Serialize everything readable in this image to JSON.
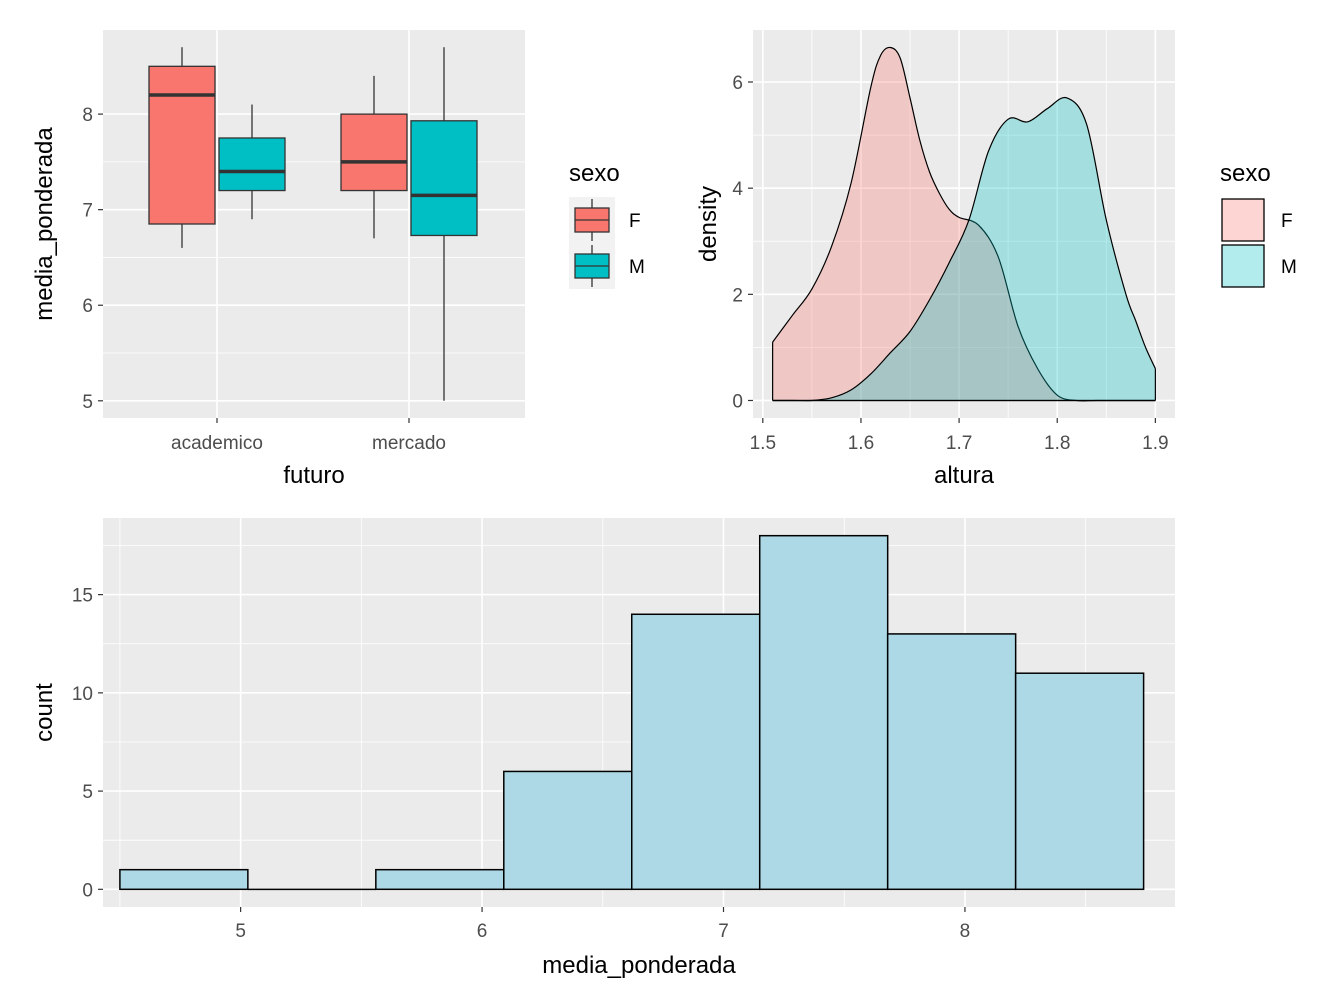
{
  "chart_data": [
    {
      "type": "box",
      "xlabel": "futuro",
      "ylabel": "media_ponderada",
      "categories": [
        "academico",
        "mercado"
      ],
      "ylim": [
        4.82,
        8.88
      ],
      "yticks": [
        5,
        6,
        7,
        8
      ],
      "legend": {
        "title": "sexo",
        "position": "right"
      },
      "series": [
        {
          "name": "F",
          "color": "#F8766D",
          "boxes": [
            {
              "category": "academico",
              "min": 6.6,
              "q1": 6.85,
              "median": 8.2,
              "q3": 8.5,
              "max": 8.7
            },
            {
              "category": "mercado",
              "min": 6.7,
              "q1": 7.2,
              "median": 7.5,
              "q3": 8.0,
              "max": 8.4
            }
          ]
        },
        {
          "name": "M",
          "color": "#00BFC4",
          "boxes": [
            {
              "category": "academico",
              "min": 6.9,
              "q1": 7.2,
              "median": 7.4,
              "q3": 7.75,
              "max": 8.1
            },
            {
              "category": "mercado",
              "min": 5.0,
              "q1": 6.73,
              "median": 7.15,
              "q3": 7.93,
              "max": 8.7
            }
          ]
        }
      ]
    },
    {
      "type": "area",
      "xlabel": "altura",
      "ylabel": "density",
      "xlim": [
        1.49,
        1.92
      ],
      "ylim": [
        -0.33,
        6.98
      ],
      "xticks": [
        1.5,
        1.6,
        1.7,
        1.8,
        1.9
      ],
      "yticks": [
        0,
        2,
        4,
        6
      ],
      "legend": {
        "title": "sexo",
        "position": "right"
      },
      "series": [
        {
          "name": "F",
          "color": "#F8766D",
          "x": [
            1.51,
            1.53,
            1.55,
            1.57,
            1.59,
            1.61,
            1.62,
            1.63,
            1.64,
            1.65,
            1.66,
            1.67,
            1.68,
            1.69,
            1.7,
            1.72,
            1.74,
            1.76,
            1.78,
            1.8,
            1.82,
            1.84,
            1.86,
            1.88,
            1.9
          ],
          "y": [
            1.1,
            1.6,
            2.1,
            2.9,
            4.1,
            5.9,
            6.5,
            6.65,
            6.45,
            5.7,
            4.9,
            4.3,
            3.9,
            3.6,
            3.45,
            3.3,
            2.7,
            1.4,
            0.6,
            0.1,
            0.0,
            0.0,
            0.0,
            0.0,
            0.0
          ]
        },
        {
          "name": "M",
          "color": "#00BFC4",
          "x": [
            1.51,
            1.53,
            1.55,
            1.57,
            1.59,
            1.61,
            1.63,
            1.65,
            1.67,
            1.69,
            1.71,
            1.73,
            1.75,
            1.77,
            1.79,
            1.81,
            1.83,
            1.85,
            1.87,
            1.88,
            1.89,
            1.9
          ],
          "y": [
            0.0,
            0.0,
            0.0,
            0.05,
            0.2,
            0.5,
            0.9,
            1.3,
            1.9,
            2.6,
            3.4,
            4.7,
            5.3,
            5.25,
            5.5,
            5.7,
            5.2,
            3.4,
            2.0,
            1.5,
            1.0,
            0.6
          ]
        }
      ]
    },
    {
      "type": "bar",
      "xlabel": "media_ponderada",
      "ylabel": "count",
      "xlim": [
        4.43,
        8.87
      ],
      "ylim": [
        -0.9,
        18.9
      ],
      "xticks": [
        5,
        6,
        7,
        8
      ],
      "yticks": [
        0,
        5,
        10,
        15
      ],
      "bar_color": "#ADD8E6",
      "bins": [
        {
          "x0": 4.5,
          "x1": 5.03,
          "count": 1
        },
        {
          "x0": 5.03,
          "x1": 5.56,
          "count": 0
        },
        {
          "x0": 5.56,
          "x1": 6.09,
          "count": 1
        },
        {
          "x0": 6.09,
          "x1": 6.62,
          "count": 6
        },
        {
          "x0": 6.62,
          "x1": 7.15,
          "count": 14
        },
        {
          "x0": 7.15,
          "x1": 7.68,
          "count": 18
        },
        {
          "x0": 7.68,
          "x1": 8.21,
          "count": 13
        },
        {
          "x0": 8.21,
          "x1": 8.74,
          "count": 11
        }
      ]
    }
  ]
}
